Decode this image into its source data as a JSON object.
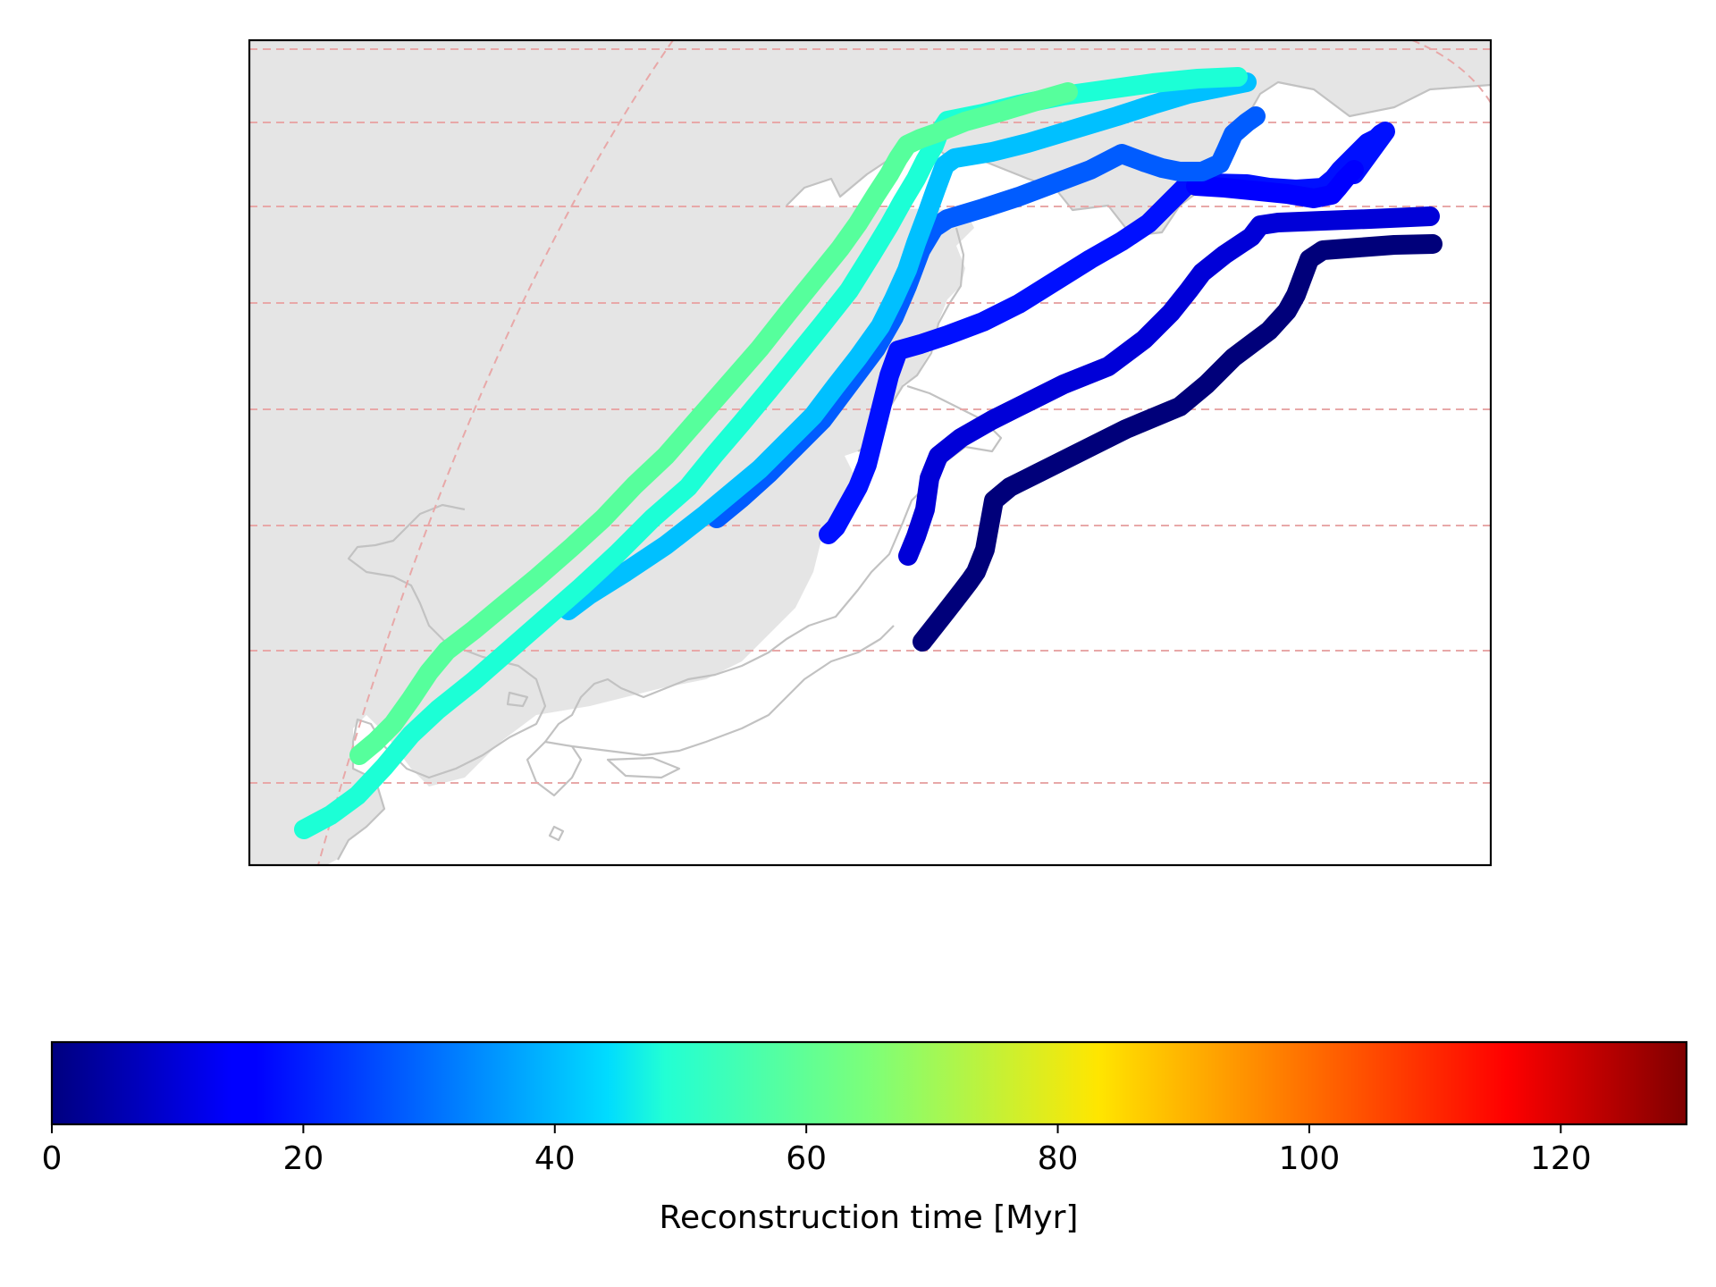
{
  "map": {
    "base_land_color": "#e5e5e5",
    "coastline_color": "#c2c2c2",
    "gridline_color": "#e8a8a8",
    "projection": "curved",
    "gridlines": "dashed"
  },
  "tracks": [
    {
      "id": "track-1",
      "color": "#00007a"
    },
    {
      "id": "track-2",
      "color": "#0000d8"
    },
    {
      "id": "track-3",
      "color": "#0010ff"
    },
    {
      "id": "track-4",
      "color": "#0000ff"
    },
    {
      "id": "track-5",
      "color": "#005cff"
    },
    {
      "id": "track-6",
      "color": "#00c0ff"
    },
    {
      "id": "track-7",
      "color": "#1cffd6"
    },
    {
      "id": "track-8",
      "color": "#56ff9c"
    }
  ],
  "colorbar": {
    "label": "Reconstruction time [Myr]",
    "min": 0,
    "max": 130,
    "ticks": [
      "0",
      "20",
      "40",
      "60",
      "80",
      "100",
      "120"
    ],
    "tick_values": [
      0,
      20,
      40,
      60,
      80,
      100,
      120
    ],
    "colormap": "jet"
  }
}
